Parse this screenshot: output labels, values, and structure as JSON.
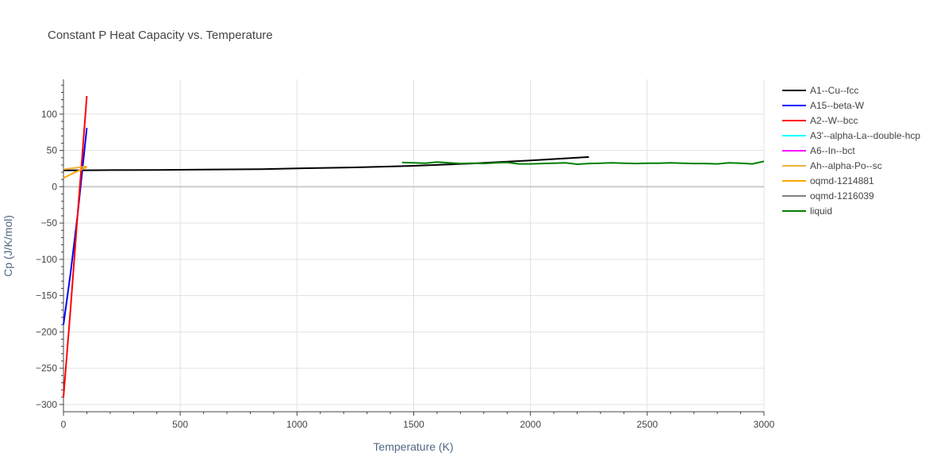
{
  "chart_data": {
    "type": "line",
    "title": "Constant P Heat Capacity vs. Temperature",
    "xlabel": "Temperature (K)",
    "ylabel": "Cp (J/K/mol)",
    "xlim": [
      0,
      3000
    ],
    "ylim": [
      -310,
      148
    ],
    "x_ticks": [
      0,
      500,
      1000,
      1500,
      2000,
      2500,
      3000
    ],
    "x_tick_labels": [
      "0",
      "500",
      "1000",
      "1500",
      "2000",
      "2500",
      "3000"
    ],
    "y_ticks": [
      100,
      50,
      0,
      -50,
      -100,
      -150,
      -200,
      -250,
      -300
    ],
    "y_tick_labels": [
      "100",
      "50",
      "0",
      "−50",
      "−100",
      "−150",
      "−200",
      "−250",
      "−300"
    ],
    "grid": true,
    "legend_position": "right",
    "series": [
      {
        "name": "A1--Cu--fcc",
        "color": "#000000",
        "x": [
          0,
          100,
          200,
          400,
          600,
          850,
          1000,
          1250,
          1500,
          1750,
          2000,
          2250
        ],
        "y": [
          22.6,
          22.7,
          22.9,
          23.2,
          23.6,
          24.3,
          25.2,
          26.7,
          28.9,
          32.0,
          36.3,
          41.0
        ]
      },
      {
        "name": "A15--beta-W",
        "color": "#0000ff",
        "x": [
          0,
          30,
          60,
          80,
          100
        ],
        "y": [
          -190,
          -120,
          -40,
          20,
          81
        ]
      },
      {
        "name": "A2--W--bcc",
        "color": "#ff0000",
        "x": [
          0,
          30,
          60,
          80,
          100
        ],
        "y": [
          -290,
          -170,
          -40,
          40,
          125
        ]
      },
      {
        "name": "A3'--alpha-La--double-hcp",
        "color": "#00ffff",
        "x": [],
        "y": []
      },
      {
        "name": "A6--In--bct",
        "color": "#ff00ff",
        "x": [],
        "y": []
      },
      {
        "name": "Ah--alpha-Po--sc",
        "color": "#f0b23c",
        "x": [
          0,
          50,
          100
        ],
        "y": [
          24,
          26,
          28
        ]
      },
      {
        "name": "oqmd-1214881",
        "color": "#ffa500",
        "x": [
          0,
          50,
          100
        ],
        "y": [
          12,
          20,
          27
        ]
      },
      {
        "name": "oqmd-1216039",
        "color": "#808080",
        "x": [],
        "y": []
      },
      {
        "name": "liquid",
        "color": "#008000",
        "x": [
          1450,
          1500,
          1550,
          1600,
          1650,
          1700,
          1750,
          1800,
          1850,
          1900,
          1950,
          2000,
          2050,
          2100,
          2150,
          2200,
          2250,
          2300,
          2350,
          2400,
          2450,
          2500,
          2550,
          2600,
          2650,
          2700,
          2750,
          2800,
          2850,
          2900,
          2950,
          3000
        ],
        "y": [
          33.5,
          33.0,
          32.5,
          34.0,
          33.0,
          32.0,
          32.5,
          32.0,
          33.0,
          33.5,
          31.5,
          31.5,
          32.0,
          32.5,
          33.0,
          31.0,
          32.0,
          32.5,
          33.0,
          32.5,
          32.0,
          32.5,
          32.5,
          33.0,
          32.5,
          32.0,
          32.0,
          31.5,
          33.0,
          32.5,
          31.5,
          35.0
        ]
      }
    ]
  }
}
